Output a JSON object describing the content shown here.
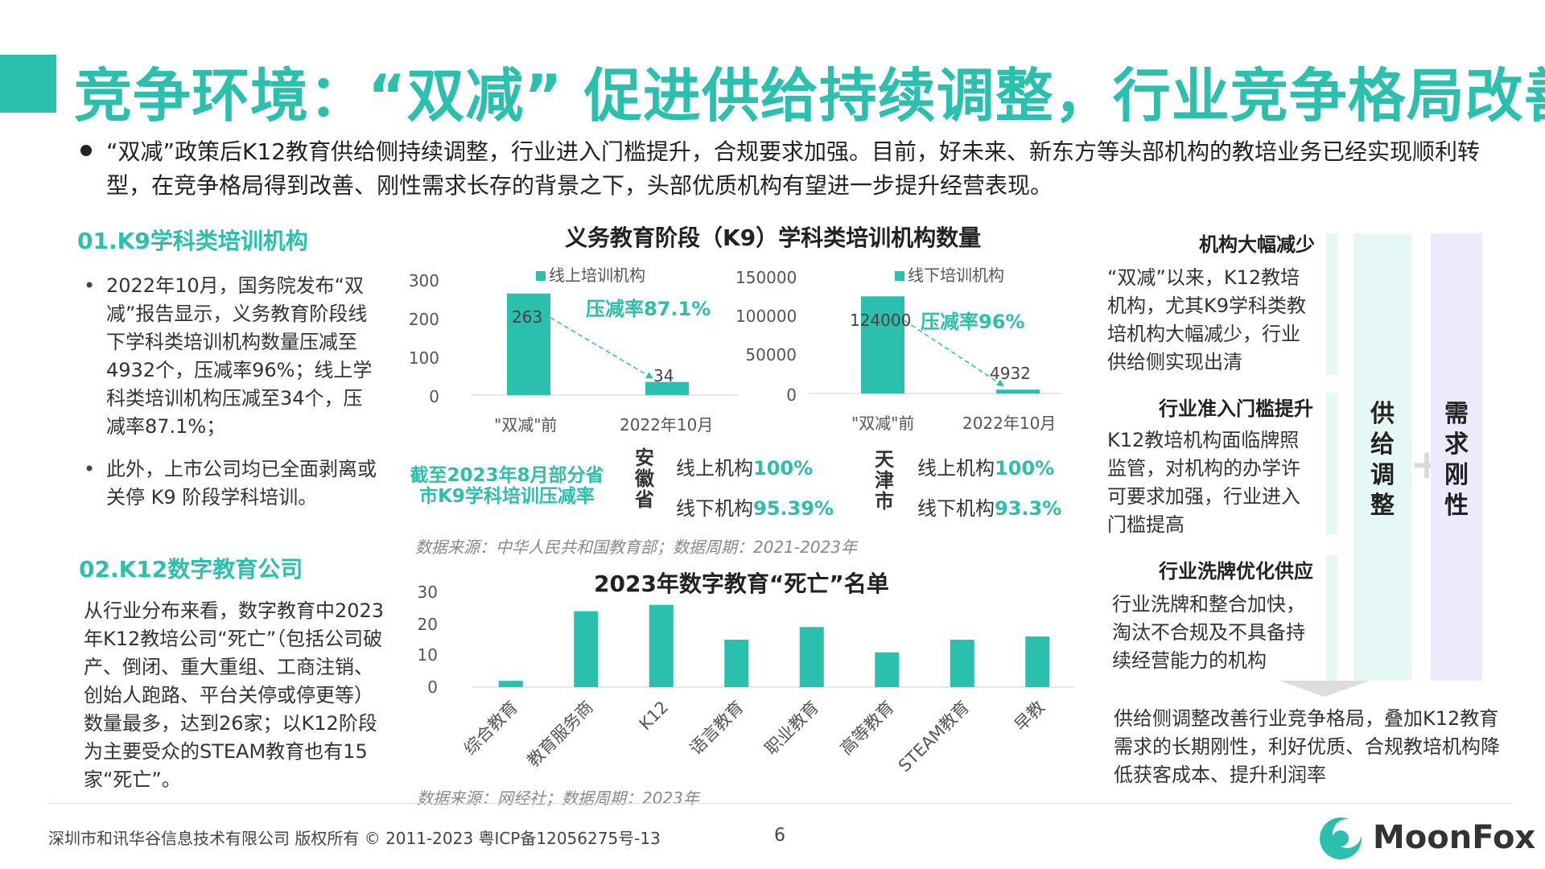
{
  "title": "竞争环境：“双减” 促进供给持续调整，行业竞争格局改善",
  "intro": "“双减”政策后K12教育供给侧持续调整，行业进入门槛提升，合规要求加强。目前，好未来、新东方等头部机构的教培业务已经实现顺利转型，在竞争格局得到改善、刚性需求长存的背景之下，头部优质机构有望进一步提升经营表现。",
  "left": {
    "section1_title": "01.K9学科类培训机构",
    "section1_items": [
      "2022年10月，国务院发布“双减”报告显示，义务教育阶段线下学科类培训机构数量压减至4932个，压减率96%；线上学科类培训机构压减至34个，压减率87.1%；",
      "此外，上市公司均已全面剥离或关停 K9 阶段学科培训。"
    ],
    "section2_title": "02.K12数字教育公司",
    "section2_text": "从行业分布来看，数字教育中2023年K12教培公司“死亡”（包括公司破产、倒闭、重大重组、工商注销、创始人跑路、平台关停或停更等）数量最多，达到26家；以K12阶段为主要受众的STEAM教育也有15家“死亡”。"
  },
  "chart1": {
    "title": "义务教育阶段（K9）学科类培训机构数量",
    "online_legend": "线上培训机构",
    "offline_legend": "线下培训机构",
    "online_rate": "压减率87.1%",
    "offline_rate": "压减率96%",
    "online_ticks": [
      "300",
      "200",
      "100",
      "0"
    ],
    "offline_ticks": [
      "150000",
      "100000",
      "50000",
      "0"
    ],
    "online_value_labels": [
      "263",
      "34"
    ],
    "offline_value_labels": [
      "124000",
      "4932"
    ],
    "categories": [
      "\"双减\"前",
      "2022年10月"
    ]
  },
  "chart_data": [
    {
      "type": "bar",
      "title": "义务教育阶段（K9）学科类培训机构数量",
      "categories": [
        "\"双减\"前",
        "2022年10月"
      ],
      "series": [
        {
          "name": "线上培训机构",
          "values": [
            263,
            34
          ]
        }
      ],
      "ylim": [
        0,
        300
      ],
      "annotation": "压减率87.1%"
    },
    {
      "type": "bar",
      "categories": [
        "\"双减\"前",
        "2022年10月"
      ],
      "series": [
        {
          "name": "线下培训机构",
          "values": [
            124000,
            4932
          ]
        }
      ],
      "ylim": [
        0,
        150000
      ],
      "annotation": "压减率96%"
    },
    {
      "type": "bar",
      "title": "2023年数字教育“死亡”名单",
      "categories": [
        "综合教育",
        "教育服务商",
        "K12",
        "语言教育",
        "职业教育",
        "高等教育",
        "STEAM教育",
        "早教"
      ],
      "values": [
        2,
        24,
        26,
        15,
        19,
        11,
        15,
        16
      ],
      "ylim": [
        0,
        30
      ]
    }
  ],
  "compression": {
    "title": "截至2023年8月部分省市K9学科培训压减率",
    "provinces": [
      {
        "name": "安徽省",
        "online_label": "线上机构",
        "online_rate": "100%",
        "offline_label": "线下机构",
        "offline_rate": "95.39%"
      },
      {
        "name": "天津市",
        "online_label": "线上机构",
        "online_rate": "100%",
        "offline_label": "线下机构",
        "offline_rate": "93.3%"
      }
    ],
    "source": "数据来源：中华人民共和国教育部；数据周期：2021-2023年"
  },
  "chart2": {
    "title": "2023年数字教育“死亡”名单",
    "ticks": [
      "30",
      "20",
      "10",
      "0"
    ],
    "categories": [
      "综合教育",
      "教育服务商",
      "K12",
      "语言教育",
      "职业教育",
      "高等教育",
      "STEAM教育",
      "早教"
    ],
    "source": "数据来源：网经社；数据周期：2023年"
  },
  "right": {
    "blocks": [
      {
        "heading": "机构大幅减少",
        "text": "“双减”以来，K12教培机构，尤其K9学科类教培机构大幅减少，行业供给侧实现出清"
      },
      {
        "heading": "行业准入门槛提升",
        "text": "K12教培机构面临牌照监管，对机构的办学许可要求加强，行业进入门槛提高"
      },
      {
        "heading": "行业洗牌优化供应",
        "text": "行业洗牌和整合加快，淘汰不合规及不具备持续经营能力的机构"
      }
    ],
    "band1": "供给调整",
    "band2": "需求刚性",
    "plus": "+",
    "conclusion": "供给侧调整改善行业竞争格局，叠加K12教育需求的长期刚性，利好优质、合规教培机构降低获客成本、提升利润率"
  },
  "footer": {
    "copyright": "深圳市和讯华谷信息技术有限公司 版权所有 © 2011-2023 粤ICP备12056275号-13",
    "page": "6",
    "logo": "MoonFox"
  },
  "colors": {
    "accent": "#2bbfad",
    "band_green": "#e6f8f5",
    "band_purple": "#ecebfc"
  }
}
